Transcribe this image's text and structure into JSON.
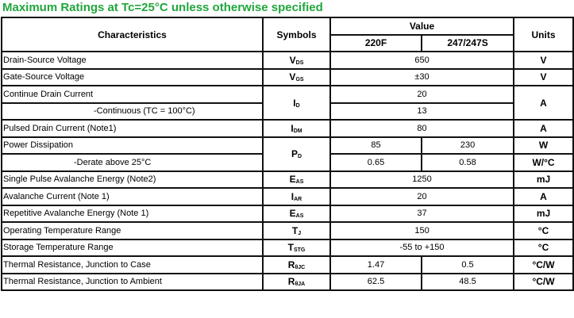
{
  "title": "Maximum Ratings at Tc=25°C unless otherwise specified",
  "header": {
    "characteristics": "Characteristics",
    "symbols": "Symbols",
    "value": "Value",
    "col_a": "220F",
    "col_b": "247/247S",
    "units": "Units"
  },
  "rows": [
    {
      "char": "Drain-Source Voltage",
      "sym": "V",
      "sub": "DS",
      "value": "650",
      "unit": "V"
    },
    {
      "char": "Gate-Source Voltage",
      "sym": "V",
      "sub": "GS",
      "value": "±30",
      "unit": "V"
    },
    {
      "char": "Continue Drain Current",
      "sym": "I",
      "sub": "D",
      "value": "20",
      "unit": "A"
    },
    {
      "char": "-Continuous (TC = 100°C)",
      "value": "13"
    },
    {
      "char": "Pulsed Drain Current (Note1)",
      "sym": "I",
      "sub": "DM",
      "value": "80",
      "unit": "A"
    },
    {
      "char": "Power Dissipation",
      "sym": "P",
      "sub": "D",
      "a": "85",
      "b": "230",
      "unit": "W"
    },
    {
      "char": "-Derate above 25°C",
      "a": "0.65",
      "b": "0.58",
      "unit": "W/°C"
    },
    {
      "char": "Single Pulse Avalanche Energy (Note2)",
      "sym": "E",
      "sub": "AS",
      "value": "1250",
      "unit": "mJ"
    },
    {
      "char": "Avalanche Current (Note 1)",
      "sym": "I",
      "sub": "AR",
      "value": "20",
      "unit": "A"
    },
    {
      "char": "Repetitive Avalanche Energy (Note 1)",
      "sym": "E",
      "sub": "AS",
      "value": "37",
      "unit": "mJ"
    },
    {
      "char": "Operating Temperature Range",
      "sym": "T",
      "sub": "J",
      "value": "150",
      "unit": "°C"
    },
    {
      "char": "Storage Temperature Range",
      "sym": "T",
      "sub": "STG",
      "value": "-55 to +150",
      "unit": "°C"
    },
    {
      "char": "Thermal Resistance, Junction to Case",
      "sym": "R",
      "sub": "θJC",
      "a": "1.47",
      "b": "0.5",
      "unit": "°C/W"
    },
    {
      "char": "Thermal Resistance, Junction to Ambient",
      "sym": "R",
      "sub": "θJA",
      "a": "62.5",
      "b": "48.5",
      "unit": "°C/W"
    }
  ]
}
